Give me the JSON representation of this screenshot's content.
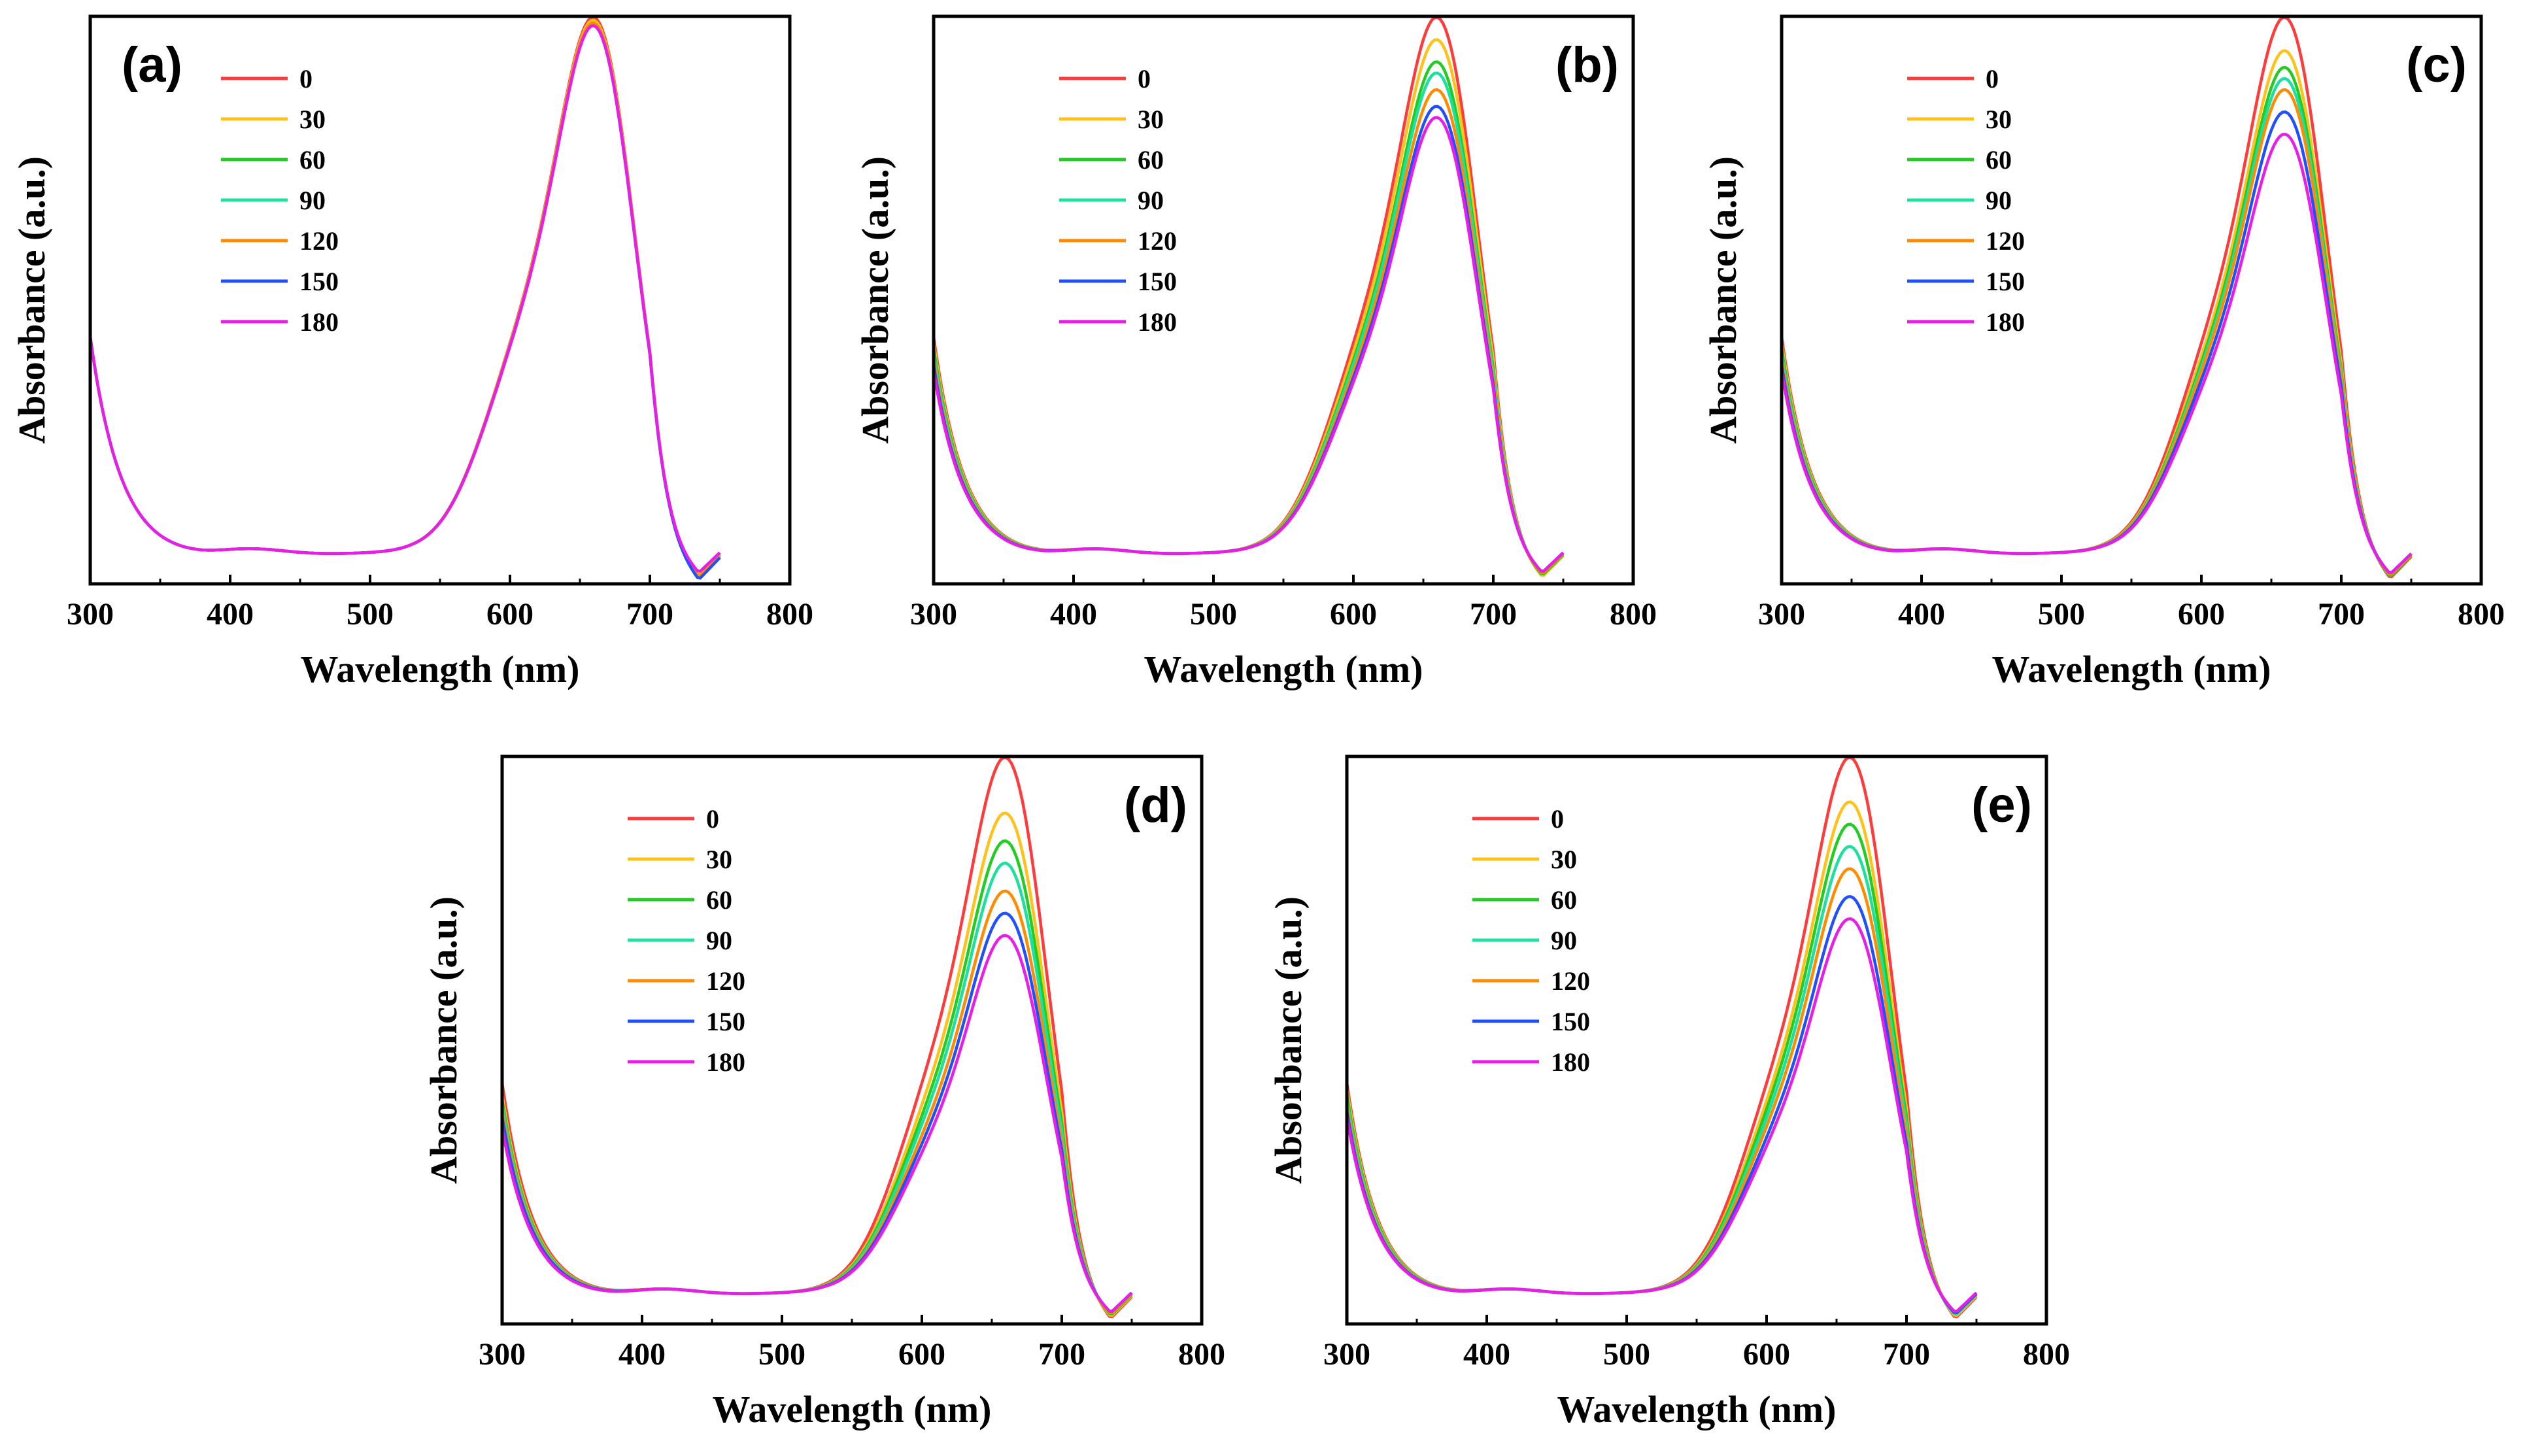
{
  "chart_data": [
    {
      "type": "line",
      "panel_label": "(a)",
      "xlabel": "Wavelength (nm)",
      "ylabel": "Absorbance (a.u.)",
      "xlim": [
        300,
        800
      ],
      "xticks": [
        "300",
        "400",
        "500",
        "600",
        "700",
        "800"
      ],
      "ylim": [
        0,
        1.0
      ],
      "legend_position": "top-left",
      "series": [
        {
          "name": "0",
          "color": "#ff3b3b",
          "peak": 0.96,
          "start": 0.44,
          "tail": 0.09
        },
        {
          "name": "30",
          "color": "#ffc21a",
          "peak": 0.955,
          "start": 0.44,
          "tail": 0.08
        },
        {
          "name": "60",
          "color": "#22cc22",
          "peak": 0.95,
          "start": 0.44,
          "tail": 0.07
        },
        {
          "name": "90",
          "color": "#1de0a0",
          "peak": 0.95,
          "start": 0.44,
          "tail": 0.06
        },
        {
          "name": "120",
          "color": "#ff8c00",
          "peak": 0.95,
          "start": 0.44,
          "tail": 0.07
        },
        {
          "name": "150",
          "color": "#1f4fff",
          "peak": 0.945,
          "start": 0.44,
          "tail": 0.05
        },
        {
          "name": "180",
          "color": "#e81ee8",
          "peak": 0.945,
          "start": 0.44,
          "tail": 0.1
        }
      ]
    },
    {
      "type": "line",
      "panel_label": "(b)",
      "xlabel": "Wavelength (nm)",
      "ylabel": "Absorbance (a.u.)",
      "xlim": [
        300,
        800
      ],
      "xticks": [
        "300",
        "400",
        "500",
        "600",
        "700",
        "800"
      ],
      "ylim": [
        0,
        1.0
      ],
      "legend_position": "top-left",
      "series": [
        {
          "name": "0",
          "color": "#ff3b3b",
          "peak": 0.96,
          "start": 0.44,
          "tail": 0.07
        },
        {
          "name": "30",
          "color": "#ffc21a",
          "peak": 0.92,
          "start": 0.43,
          "tail": 0.07
        },
        {
          "name": "60",
          "color": "#22cc22",
          "peak": 0.88,
          "start": 0.42,
          "tail": 0.08
        },
        {
          "name": "90",
          "color": "#1de0a0",
          "peak": 0.86,
          "start": 0.41,
          "tail": 0.09
        },
        {
          "name": "120",
          "color": "#ff8c00",
          "peak": 0.83,
          "start": 0.4,
          "tail": 0.09
        },
        {
          "name": "150",
          "color": "#1f4fff",
          "peak": 0.8,
          "start": 0.39,
          "tail": 0.1
        },
        {
          "name": "180",
          "color": "#e81ee8",
          "peak": 0.78,
          "start": 0.38,
          "tail": 0.1
        }
      ]
    },
    {
      "type": "line",
      "panel_label": "(c)",
      "xlabel": "Wavelength (nm)",
      "ylabel": "Absorbance (a.u.)",
      "xlim": [
        300,
        800
      ],
      "xticks": [
        "300",
        "400",
        "500",
        "600",
        "700",
        "800"
      ],
      "ylim": [
        0,
        1.0
      ],
      "legend_position": "top-left",
      "series": [
        {
          "name": "0",
          "color": "#ff3b3b",
          "peak": 0.96,
          "start": 0.44,
          "tail": 0.06
        },
        {
          "name": "30",
          "color": "#ffc21a",
          "peak": 0.9,
          "start": 0.43,
          "tail": 0.07
        },
        {
          "name": "60",
          "color": "#22cc22",
          "peak": 0.87,
          "start": 0.42,
          "tail": 0.07
        },
        {
          "name": "90",
          "color": "#1de0a0",
          "peak": 0.85,
          "start": 0.41,
          "tail": 0.08
        },
        {
          "name": "120",
          "color": "#ff8c00",
          "peak": 0.83,
          "start": 0.4,
          "tail": 0.08
        },
        {
          "name": "150",
          "color": "#1f4fff",
          "peak": 0.79,
          "start": 0.39,
          "tail": 0.09
        },
        {
          "name": "180",
          "color": "#e81ee8",
          "peak": 0.75,
          "start": 0.38,
          "tail": 0.09
        }
      ]
    },
    {
      "type": "line",
      "panel_label": "(d)",
      "xlabel": "Wavelength (nm)",
      "ylabel": "Absorbance (a.u.)",
      "xlim": [
        300,
        800
      ],
      "xticks": [
        "300",
        "400",
        "500",
        "600",
        "700",
        "800"
      ],
      "ylim": [
        0,
        1.0
      ],
      "legend_position": "top-left",
      "series": [
        {
          "name": "0",
          "color": "#ff3b3b",
          "peak": 0.96,
          "start": 0.43,
          "tail": 0.06
        },
        {
          "name": "30",
          "color": "#ffc21a",
          "peak": 0.86,
          "start": 0.41,
          "tail": 0.07
        },
        {
          "name": "60",
          "color": "#22cc22",
          "peak": 0.81,
          "start": 0.4,
          "tail": 0.08
        },
        {
          "name": "90",
          "color": "#1de0a0",
          "peak": 0.77,
          "start": 0.39,
          "tail": 0.09
        },
        {
          "name": "120",
          "color": "#ff8c00",
          "peak": 0.72,
          "start": 0.38,
          "tail": 0.09
        },
        {
          "name": "150",
          "color": "#1f4fff",
          "peak": 0.68,
          "start": 0.37,
          "tail": 0.1
        },
        {
          "name": "180",
          "color": "#e81ee8",
          "peak": 0.64,
          "start": 0.35,
          "tail": 0.1
        }
      ]
    },
    {
      "type": "line",
      "panel_label": "(e)",
      "xlabel": "Wavelength (nm)",
      "ylabel": "Absorbance (a.u.)",
      "xlim": [
        300,
        800
      ],
      "xticks": [
        "300",
        "400",
        "500",
        "600",
        "700",
        "800"
      ],
      "ylim": [
        0,
        1.0
      ],
      "legend_position": "top-left",
      "series": [
        {
          "name": "0",
          "color": "#ff3b3b",
          "peak": 0.96,
          "start": 0.43,
          "tail": 0.06
        },
        {
          "name": "30",
          "color": "#ffc21a",
          "peak": 0.88,
          "start": 0.42,
          "tail": 0.07
        },
        {
          "name": "60",
          "color": "#22cc22",
          "peak": 0.84,
          "start": 0.41,
          "tail": 0.08
        },
        {
          "name": "90",
          "color": "#1de0a0",
          "peak": 0.8,
          "start": 0.4,
          "tail": 0.08
        },
        {
          "name": "120",
          "color": "#ff8c00",
          "peak": 0.76,
          "start": 0.39,
          "tail": 0.09
        },
        {
          "name": "150",
          "color": "#1f4fff",
          "peak": 0.71,
          "start": 0.38,
          "tail": 0.09
        },
        {
          "name": "180",
          "color": "#e81ee8",
          "peak": 0.67,
          "start": 0.37,
          "tail": 0.1
        }
      ]
    }
  ]
}
